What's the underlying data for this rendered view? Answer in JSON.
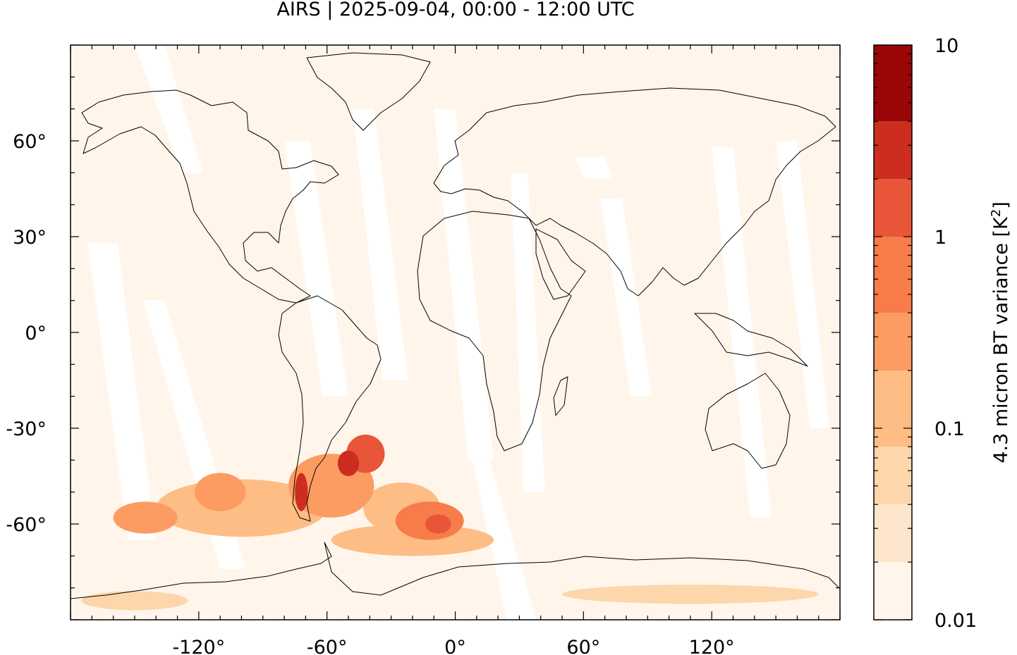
{
  "title": "AIRS | 2025-09-04, 00:00 - 12:00 UTC",
  "map": {
    "projection": "equirectangular",
    "lon_range": [
      -180,
      180
    ],
    "lat_range": [
      -90,
      90
    ],
    "lat_ticks": [
      {
        "value": 60,
        "label": "60°"
      },
      {
        "value": 30,
        "label": "30°"
      },
      {
        "value": 0,
        "label": "0°"
      },
      {
        "value": -30,
        "label": "-30°"
      },
      {
        "value": -60,
        "label": "-60°"
      }
    ],
    "lon_ticks": [
      {
        "value": -120,
        "label": "-120°"
      },
      {
        "value": -60,
        "label": "-60°"
      },
      {
        "value": 0,
        "label": "0°"
      },
      {
        "value": 60,
        "label": "60°"
      },
      {
        "value": 120,
        "label": "120°"
      }
    ],
    "background_color": "#fff5eb",
    "coastline_color": "#000000"
  },
  "colorbar": {
    "label": "4.3 micron BT variance [K",
    "label_sup": "2",
    "label_end": "]",
    "scale": "log",
    "range": [
      0.01,
      10
    ],
    "ticks": [
      {
        "value": 10,
        "label": "10"
      },
      {
        "value": 1,
        "label": "1"
      },
      {
        "value": 0.1,
        "label": "0.1"
      },
      {
        "value": 0.01,
        "label": "0.01"
      }
    ],
    "bins": [
      {
        "from": 0.01,
        "to": 0.02,
        "color": "#fff5eb"
      },
      {
        "from": 0.02,
        "to": 0.04,
        "color": "#fee6ce"
      },
      {
        "from": 0.04,
        "to": 0.08,
        "color": "#fdd7ab"
      },
      {
        "from": 0.08,
        "to": 0.2,
        "color": "#fdbd85"
      },
      {
        "from": 0.2,
        "to": 0.4,
        "color": "#fd9c62"
      },
      {
        "from": 0.4,
        "to": 1,
        "color": "#f77c4a"
      },
      {
        "from": 1,
        "to": 2,
        "color": "#e85538"
      },
      {
        "from": 2,
        "to": 4,
        "color": "#cc2d1f"
      },
      {
        "from": 4,
        "to": 10,
        "color": "#9b0606"
      }
    ]
  },
  "swath_gaps": [
    [
      [
        -150,
        90
      ],
      [
        -136,
        90
      ],
      [
        -118,
        50
      ],
      [
        -128,
        50
      ]
    ],
    [
      [
        -172,
        28
      ],
      [
        -158,
        28
      ],
      [
        -140,
        -65
      ],
      [
        -153,
        -65
      ]
    ],
    [
      [
        -146,
        10
      ],
      [
        -136,
        10
      ],
      [
        -98,
        -74
      ],
      [
        -110,
        -74
      ]
    ],
    [
      [
        -80,
        60
      ],
      [
        -68,
        60
      ],
      [
        -50,
        -20
      ],
      [
        -62,
        -20
      ]
    ],
    [
      [
        -48,
        70
      ],
      [
        -38,
        70
      ],
      [
        -22,
        -15
      ],
      [
        -34,
        -15
      ]
    ],
    [
      [
        -10,
        70
      ],
      [
        0,
        70
      ],
      [
        18,
        -40
      ],
      [
        6,
        -40
      ]
    ],
    [
      [
        26,
        50
      ],
      [
        34,
        50
      ],
      [
        42,
        -50
      ],
      [
        32,
        -50
      ]
    ],
    [
      [
        8,
        -40
      ],
      [
        16,
        -40
      ],
      [
        38,
        -90
      ],
      [
        24,
        -90
      ]
    ],
    [
      [
        56,
        55
      ],
      [
        70,
        55
      ],
      [
        74,
        48
      ],
      [
        60,
        48
      ]
    ],
    [
      [
        68,
        42
      ],
      [
        78,
        42
      ],
      [
        92,
        -20
      ],
      [
        82,
        -20
      ]
    ],
    [
      [
        120,
        58
      ],
      [
        130,
        58
      ],
      [
        148,
        -58
      ],
      [
        138,
        -58
      ]
    ],
    [
      [
        150,
        60
      ],
      [
        160,
        60
      ],
      [
        175,
        -30
      ],
      [
        166,
        -30
      ]
    ]
  ],
  "variance_blobs": [
    {
      "lon": -42,
      "lat": -38,
      "rx": 9,
      "ry": 6,
      "value": 1.5
    },
    {
      "lon": -50,
      "lat": -41,
      "rx": 5,
      "ry": 4,
      "value": 3
    },
    {
      "lon": -72,
      "lat": -50,
      "rx": 3,
      "ry": 6,
      "value": 2
    },
    {
      "lon": -58,
      "lat": -48,
      "rx": 20,
      "ry": 10,
      "value": 0.25
    },
    {
      "lon": -12,
      "lat": -59,
      "rx": 16,
      "ry": 6,
      "value": 0.6
    },
    {
      "lon": -8,
      "lat": -60,
      "rx": 6,
      "ry": 3,
      "value": 1.8
    },
    {
      "lon": -25,
      "lat": -55,
      "rx": 18,
      "ry": 8,
      "value": 0.15
    },
    {
      "lon": -100,
      "lat": -55,
      "rx": 40,
      "ry": 9,
      "value": 0.1
    },
    {
      "lon": -145,
      "lat": -58,
      "rx": 15,
      "ry": 5,
      "value": 0.25
    },
    {
      "lon": -110,
      "lat": -50,
      "rx": 12,
      "ry": 6,
      "value": 0.3
    },
    {
      "lon": -20,
      "lat": -65,
      "rx": 38,
      "ry": 5,
      "value": 0.08
    },
    {
      "lon": 110,
      "lat": -82,
      "rx": 60,
      "ry": 3,
      "value": 0.05
    },
    {
      "lon": -150,
      "lat": -84,
      "rx": 25,
      "ry": 3,
      "value": 0.05
    }
  ]
}
